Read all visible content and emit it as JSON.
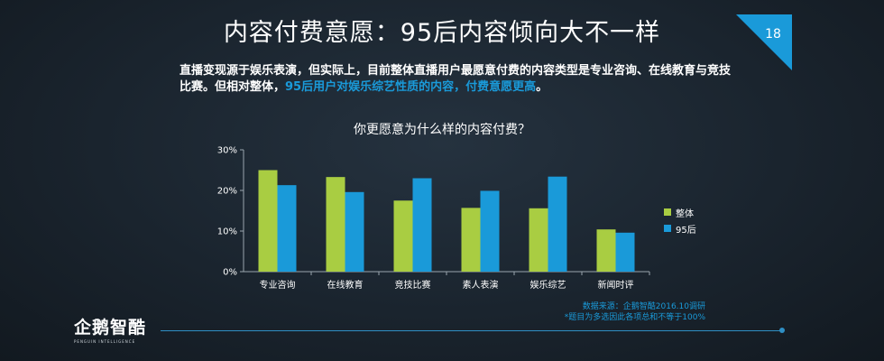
{
  "slide": {
    "title": "内容付费意愿：95后内容倾向大不一样",
    "page_number": "18",
    "intro_part1": "直播变现源于娱乐表演，但实际上，目前整体直播用户最愿意付费的内容类型是专业咨询、在线教育与竞技比赛。但相对整体，",
    "intro_highlight": "95后用户对娱乐综艺性质的内容，付费意愿更高",
    "intro_end": "。",
    "source_line1": "数据来源：企鹅智酷2016.10调研",
    "source_line2": "*题目为多选因此各项总和不等于100%",
    "logo_text": "企鹅智酷",
    "logo_sub": "PENGUIN INTELLIGENCE"
  },
  "colors": {
    "series_overall": "#a9cd42",
    "series_95": "#1a9ad9",
    "accent": "#1a9ad9"
  },
  "chart_data": {
    "type": "bar",
    "title": "你更愿意为什么样的内容付费？",
    "categories": [
      "专业咨询",
      "在线教育",
      "竞技比赛",
      "素人表演",
      "娱乐综艺",
      "新闻时评"
    ],
    "series": [
      {
        "name": "整体",
        "values": [
          25.0,
          23.3,
          17.5,
          15.7,
          15.6,
          10.4
        ]
      },
      {
        "name": "95后",
        "values": [
          21.3,
          19.6,
          23.0,
          19.9,
          23.4,
          9.6
        ]
      }
    ],
    "yticks": [
      "0%",
      "10%",
      "20%",
      "30%"
    ],
    "ylim": [
      0,
      30
    ],
    "legend_position": "right",
    "grid": false
  }
}
